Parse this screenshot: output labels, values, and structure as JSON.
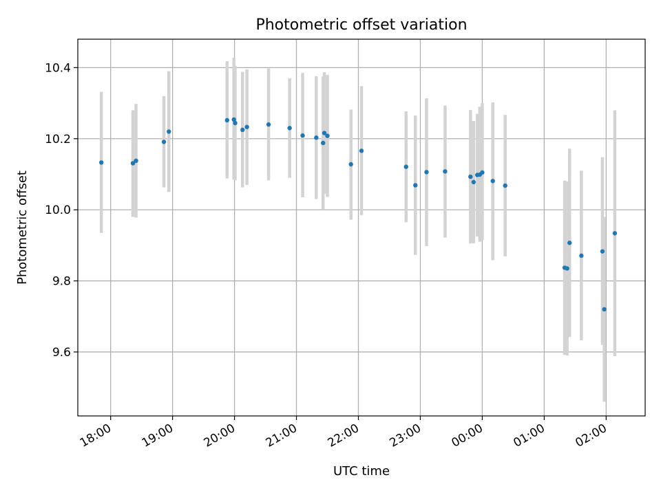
{
  "colors": {
    "point": "#1f77b4",
    "errorbar": "#d3d3d3",
    "grid": "#b0b0b0",
    "axis": "#000000"
  },
  "chart_data": {
    "type": "scatter",
    "title": "Photometric offset variation",
    "xlabel": "UTC time",
    "ylabel": "Photometric offset",
    "grid": true,
    "x_unit": "hours since 00:00 UTC of the first night (values past 24:00 fall after midnight)",
    "xlim": [
      17.47,
      26.63
    ],
    "ylim": [
      9.42,
      10.48
    ],
    "x_ticks": [
      {
        "value": 18,
        "label": "18:00"
      },
      {
        "value": 19,
        "label": "19:00"
      },
      {
        "value": 20,
        "label": "20:00"
      },
      {
        "value": 21,
        "label": "21:00"
      },
      {
        "value": 22,
        "label": "22:00"
      },
      {
        "value": 23,
        "label": "23:00"
      },
      {
        "value": 24,
        "label": "00:00"
      },
      {
        "value": 25,
        "label": "01:00"
      },
      {
        "value": 26,
        "label": "02:00"
      }
    ],
    "y_ticks": [
      {
        "value": 9.6,
        "label": "9.6"
      },
      {
        "value": 9.8,
        "label": "9.8"
      },
      {
        "value": 10.0,
        "label": "10.0"
      },
      {
        "value": 10.2,
        "label": "10.2"
      },
      {
        "value": 10.4,
        "label": "10.4"
      }
    ],
    "points": [
      {
        "x": 17.85,
        "y": 10.133,
        "lo": 9.935,
        "hi": 10.332
      },
      {
        "x": 18.36,
        "y": 10.131,
        "lo": 9.98,
        "hi": 10.28
      },
      {
        "x": 18.41,
        "y": 10.138,
        "lo": 9.978,
        "hi": 10.298
      },
      {
        "x": 18.86,
        "y": 10.191,
        "lo": 10.063,
        "hi": 10.32
      },
      {
        "x": 18.94,
        "y": 10.22,
        "lo": 10.05,
        "hi": 10.39
      },
      {
        "x": 19.88,
        "y": 10.252,
        "lo": 10.088,
        "hi": 10.418
      },
      {
        "x": 19.99,
        "y": 10.254,
        "lo": 10.085,
        "hi": 10.428
      },
      {
        "x": 20.01,
        "y": 10.244,
        "lo": 10.083,
        "hi": 10.405
      },
      {
        "x": 20.13,
        "y": 10.225,
        "lo": 10.063,
        "hi": 10.388
      },
      {
        "x": 20.2,
        "y": 10.233,
        "lo": 10.07,
        "hi": 10.395
      },
      {
        "x": 20.55,
        "y": 10.24,
        "lo": 10.083,
        "hi": 10.398
      },
      {
        "x": 20.89,
        "y": 10.23,
        "lo": 10.09,
        "hi": 10.37
      },
      {
        "x": 21.1,
        "y": 10.209,
        "lo": 10.035,
        "hi": 10.385
      },
      {
        "x": 21.32,
        "y": 10.203,
        "lo": 10.03,
        "hi": 10.376
      },
      {
        "x": 21.43,
        "y": 10.188,
        "lo": 10.0,
        "hi": 10.375
      },
      {
        "x": 21.45,
        "y": 10.216,
        "lo": 10.045,
        "hi": 10.387
      },
      {
        "x": 21.5,
        "y": 10.208,
        "lo": 10.036,
        "hi": 10.38
      },
      {
        "x": 21.88,
        "y": 10.128,
        "lo": 9.972,
        "hi": 10.282
      },
      {
        "x": 22.05,
        "y": 10.166,
        "lo": 9.985,
        "hi": 10.348
      },
      {
        "x": 22.77,
        "y": 10.121,
        "lo": 9.965,
        "hi": 10.277
      },
      {
        "x": 22.92,
        "y": 10.069,
        "lo": 9.873,
        "hi": 10.265
      },
      {
        "x": 23.1,
        "y": 10.106,
        "lo": 9.898,
        "hi": 10.314
      },
      {
        "x": 23.4,
        "y": 10.108,
        "lo": 9.922,
        "hi": 10.293
      },
      {
        "x": 23.81,
        "y": 10.093,
        "lo": 9.905,
        "hi": 10.281
      },
      {
        "x": 23.86,
        "y": 10.078,
        "lo": 9.906,
        "hi": 10.25
      },
      {
        "x": 23.92,
        "y": 10.098,
        "lo": 9.925,
        "hi": 10.27
      },
      {
        "x": 23.96,
        "y": 10.099,
        "lo": 9.91,
        "hi": 10.29
      },
      {
        "x": 24.0,
        "y": 10.105,
        "lo": 9.915,
        "hi": 10.3
      },
      {
        "x": 24.17,
        "y": 10.081,
        "lo": 9.858,
        "hi": 10.302
      },
      {
        "x": 24.37,
        "y": 10.068,
        "lo": 9.869,
        "hi": 10.267
      },
      {
        "x": 25.33,
        "y": 9.837,
        "lo": 9.592,
        "hi": 10.082
      },
      {
        "x": 25.37,
        "y": 9.835,
        "lo": 9.59,
        "hi": 10.08
      },
      {
        "x": 25.41,
        "y": 9.907,
        "lo": 9.642,
        "hi": 10.172
      },
      {
        "x": 25.6,
        "y": 9.871,
        "lo": 9.633,
        "hi": 10.11
      },
      {
        "x": 25.94,
        "y": 9.883,
        "lo": 9.62,
        "hi": 10.148
      },
      {
        "x": 25.97,
        "y": 9.72,
        "lo": 9.46,
        "hi": 9.98
      },
      {
        "x": 26.14,
        "y": 9.934,
        "lo": 9.588,
        "hi": 10.28
      }
    ]
  }
}
